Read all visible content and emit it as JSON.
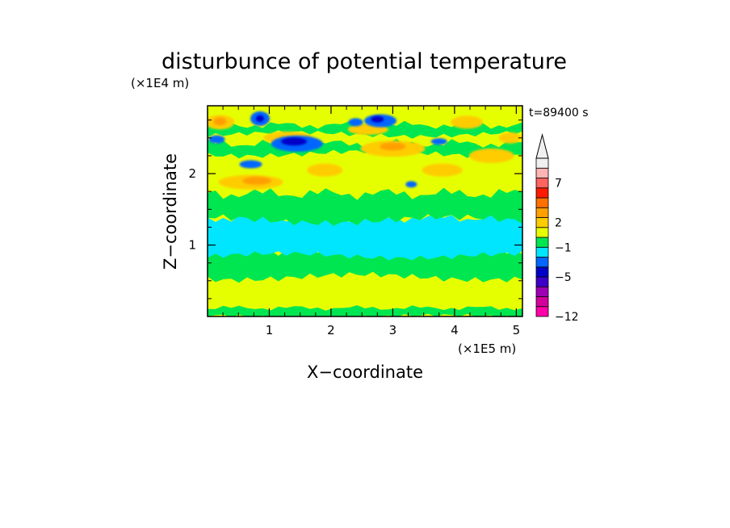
{
  "chart_data": {
    "type": "heatmap",
    "title": "disturbunce of potential temperature",
    "time_label": "t=89400 s",
    "xlabel": "X−coordinate",
    "ylabel": "Z−coordinate",
    "x_unit": "(×1E5 m)",
    "y_unit": "(×1E4 m)",
    "xlim": [
      0,
      5.1
    ],
    "ylim": [
      0,
      2.95
    ],
    "x_ticks": [
      "1",
      "2",
      "3",
      "4",
      "5"
    ],
    "y_ticks": [
      "1",
      "2"
    ],
    "colorbar": {
      "colors": [
        "#ff00aa",
        "#d4009c",
        "#9e00b3",
        "#3c00c8",
        "#0000c8",
        "#0066ff",
        "#00e6ff",
        "#00e650",
        "#e6ff00",
        "#ffcc00",
        "#ffa000",
        "#ff7000",
        "#ff1a00",
        "#ff6460",
        "#ffb4b4",
        "#f0f0f0"
      ],
      "tick_labels": [
        "7",
        "2",
        "−1",
        "−5",
        "−12"
      ],
      "extend_top": true
    },
    "bands": [
      {
        "z_range": [
          0.0,
          0.6
        ],
        "value": 0.5,
        "description": "mostly yellow with green patches"
      },
      {
        "z_range": [
          0.6,
          0.9
        ],
        "value": -0.2,
        "description": "green"
      },
      {
        "z_range": [
          0.9,
          1.35
        ],
        "value": -1.0,
        "description": "cyan layer"
      },
      {
        "z_range": [
          1.35,
          1.7
        ],
        "value": -0.1,
        "description": "green"
      },
      {
        "z_range": [
          1.7,
          2.3
        ],
        "value": 1.5,
        "description": "yellow/orange with warm blobs"
      },
      {
        "z_range": [
          2.3,
          2.95
        ],
        "value": 0.5,
        "description": "mixed, blue cores near x=1.4 and x=2.8"
      }
    ]
  }
}
